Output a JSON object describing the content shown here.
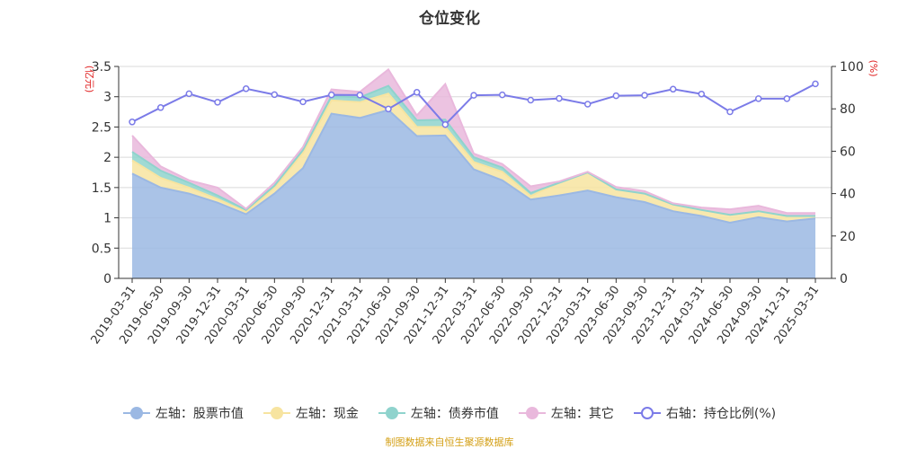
{
  "chart_data": {
    "type": "area",
    "title": "仓位变化",
    "y_left_label": "(亿元)",
    "y_right_label": "(%)",
    "y_left_range": [
      0,
      3.5
    ],
    "y_left_ticks": [
      0,
      0.5,
      1,
      1.5,
      2,
      2.5,
      3,
      3.5
    ],
    "y_right_range": [
      0,
      100
    ],
    "y_right_ticks": [
      0,
      20,
      40,
      60,
      80,
      100
    ],
    "x_tick_labels": [
      "2019-03-31",
      "2019-06-30",
      "2019-09-30",
      "2019-12-31",
      "2020-03-31",
      "2020-06-30",
      "2020-09-30",
      "2020-12-31",
      "2021-03-31",
      "2021-06-30",
      "2021-09-30",
      "2021-12-31",
      "2022-03-31",
      "2022-06-30",
      "2022-09-30",
      "2022-12-31",
      "2023-03-31",
      "2023-06-30",
      "2023-09-30",
      "2023-12-31",
      "2024-03-31",
      "2024-06-30",
      "2024-09-30",
      "2024-12-31",
      "2025-03-31"
    ],
    "series": [
      {
        "name": "左轴：股票市值",
        "axis": "left",
        "stack": true,
        "color": "#9bb8e3",
        "values": [
          1.73,
          1.5,
          1.4,
          1.25,
          1.06,
          1.4,
          1.82,
          2.72,
          2.65,
          2.78,
          2.35,
          2.36,
          1.8,
          1.62,
          1.3,
          1.37,
          1.45,
          1.34,
          1.26,
          1.11,
          1.03,
          0.92,
          1.01,
          0.94,
          0.99
        ]
      },
      {
        "name": "左轴：现金",
        "axis": "left",
        "stack": true,
        "color": "#f7e4a0",
        "values": [
          0.22,
          0.16,
          0.1,
          0.06,
          0.04,
          0.1,
          0.25,
          0.22,
          0.26,
          0.27,
          0.15,
          0.14,
          0.12,
          0.14,
          0.06,
          0.21,
          0.3,
          0.13,
          0.14,
          0.11,
          0.1,
          0.13,
          0.1,
          0.09,
          0.04
        ]
      },
      {
        "name": "左轴：债券市值",
        "axis": "left",
        "stack": true,
        "color": "#8fd3cd",
        "values": [
          0.14,
          0.12,
          0.08,
          0.06,
          0.03,
          0.03,
          0.05,
          0.07,
          0.08,
          0.13,
          0.11,
          0.12,
          0.08,
          0.07,
          0.05,
          0.0,
          0.0,
          0.0,
          0.0,
          0.0,
          0.0,
          0.0,
          0.0,
          0.0,
          0.0
        ]
      },
      {
        "name": "左轴：其它",
        "axis": "left",
        "stack": true,
        "color": "#e9b8dc",
        "values": [
          0.27,
          0.07,
          0.04,
          0.13,
          0.02,
          0.05,
          0.05,
          0.11,
          0.09,
          0.27,
          0.08,
          0.59,
          0.06,
          0.06,
          0.11,
          0.02,
          0.01,
          0.04,
          0.04,
          0.02,
          0.04,
          0.09,
          0.09,
          0.05,
          0.05
        ]
      },
      {
        "name": "右轴：持仓比例(%)",
        "axis": "right",
        "type": "line",
        "color": "#7b7be8",
        "values": [
          73.8,
          80.6,
          87.1,
          83.1,
          89.5,
          86.7,
          83.3,
          86.6,
          86.5,
          79.9,
          87.8,
          72.6,
          86.4,
          86.6,
          84.1,
          84.9,
          82.2,
          86.2,
          86.4,
          89.3,
          87.0,
          78.6,
          84.8,
          84.8,
          91.8
        ]
      }
    ]
  },
  "source_note": "制图数据来自恒生聚源数据库"
}
